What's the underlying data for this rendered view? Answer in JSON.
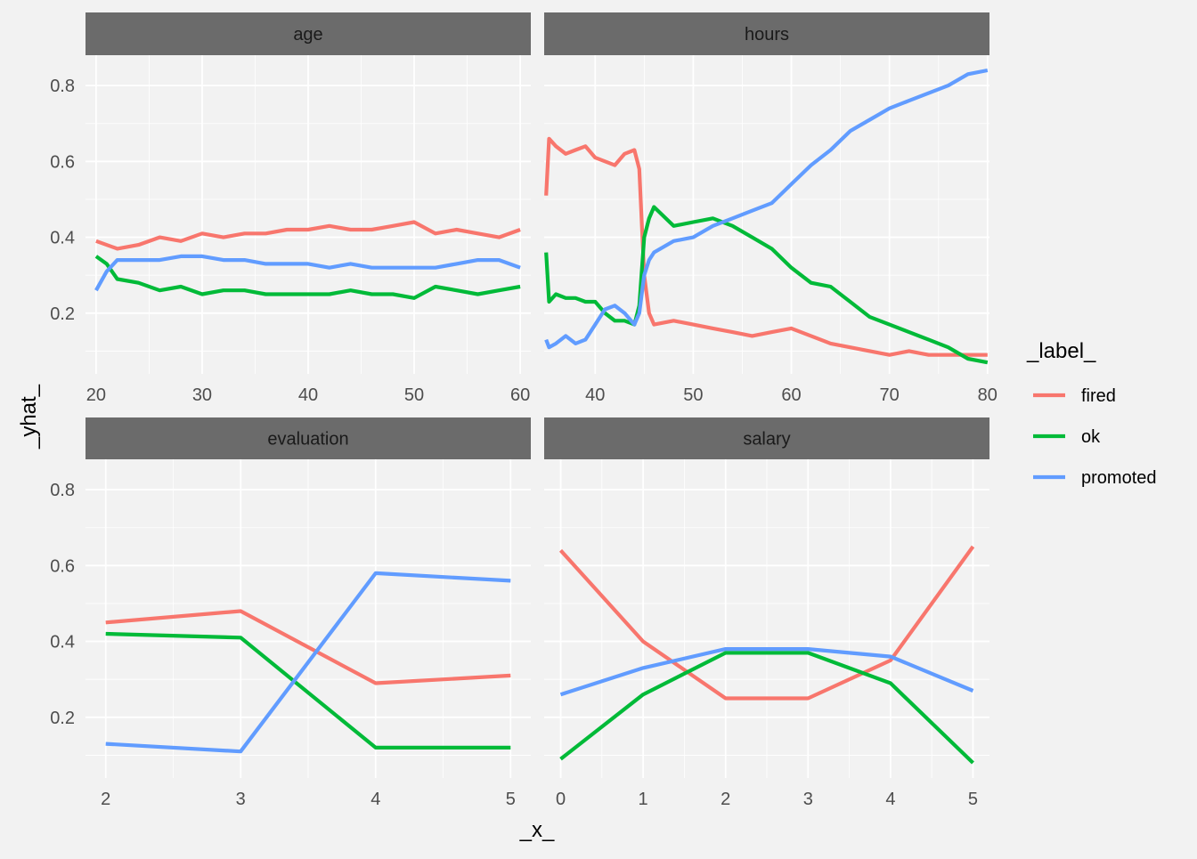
{
  "chart_data": {
    "type": "line",
    "xlabel": "_x_",
    "ylabel": "_yhat_",
    "legend": {
      "title": "_label_",
      "placement": "right",
      "entries": [
        {
          "name": "fired",
          "color": "#F8766D"
        },
        {
          "name": "ok",
          "color": "#00BA38"
        },
        {
          "name": "promoted",
          "color": "#619CFF"
        }
      ]
    },
    "shared_y": {
      "ylim": [
        0.04,
        0.88
      ],
      "ticks": [
        0.2,
        0.4,
        0.6,
        0.8
      ],
      "tick_labels": [
        "0.2",
        "0.4",
        "0.6",
        "0.8"
      ]
    },
    "panels": [
      {
        "title": "age",
        "xlim": [
          19,
          61
        ],
        "xticks": [
          20,
          30,
          40,
          50,
          60
        ],
        "xtick_labels": [
          "20",
          "30",
          "40",
          "50",
          "60"
        ],
        "series": [
          {
            "name": "fired",
            "x": [
              20,
              22,
              24,
              26,
              28,
              30,
              32,
              34,
              36,
              38,
              40,
              42,
              44,
              46,
              48,
              50,
              52,
              54,
              56,
              58,
              60
            ],
            "y": [
              0.39,
              0.37,
              0.38,
              0.4,
              0.39,
              0.41,
              0.4,
              0.41,
              0.41,
              0.42,
              0.42,
              0.43,
              0.42,
              0.42,
              0.43,
              0.44,
              0.41,
              0.42,
              0.41,
              0.4,
              0.42
            ]
          },
          {
            "name": "ok",
            "x": [
              20,
              21,
              22,
              24,
              26,
              28,
              30,
              32,
              34,
              36,
              38,
              40,
              42,
              44,
              46,
              48,
              50,
              52,
              54,
              56,
              58,
              60
            ],
            "y": [
              0.35,
              0.33,
              0.29,
              0.28,
              0.26,
              0.27,
              0.25,
              0.26,
              0.26,
              0.25,
              0.25,
              0.25,
              0.25,
              0.26,
              0.25,
              0.25,
              0.24,
              0.27,
              0.26,
              0.25,
              0.26,
              0.27
            ]
          },
          {
            "name": "promoted",
            "x": [
              20,
              21,
              22,
              24,
              26,
              28,
              30,
              32,
              34,
              36,
              38,
              40,
              42,
              44,
              46,
              48,
              50,
              52,
              54,
              56,
              58,
              60
            ],
            "y": [
              0.26,
              0.31,
              0.34,
              0.34,
              0.34,
              0.35,
              0.35,
              0.34,
              0.34,
              0.33,
              0.33,
              0.33,
              0.32,
              0.33,
              0.32,
              0.32,
              0.32,
              0.32,
              0.33,
              0.34,
              0.34,
              0.32
            ]
          }
        ]
      },
      {
        "title": "hours",
        "xlim": [
          34.8,
          80.2
        ],
        "xticks": [
          40,
          50,
          60,
          70,
          80
        ],
        "xtick_labels": [
          "40",
          "50",
          "60",
          "70",
          "80"
        ],
        "series": [
          {
            "name": "fired",
            "x": [
              35,
              35.3,
              36,
              37,
              38,
              39,
              40,
              41,
              42,
              43,
              44,
              44.5,
              45,
              45.5,
              46,
              48,
              50,
              52,
              54,
              56,
              58,
              60,
              62,
              64,
              66,
              68,
              70,
              72,
              74,
              76,
              78,
              80
            ],
            "y": [
              0.51,
              0.66,
              0.64,
              0.62,
              0.63,
              0.64,
              0.61,
              0.6,
              0.59,
              0.62,
              0.63,
              0.58,
              0.3,
              0.2,
              0.17,
              0.18,
              0.17,
              0.16,
              0.15,
              0.14,
              0.15,
              0.16,
              0.14,
              0.12,
              0.11,
              0.1,
              0.09,
              0.1,
              0.09,
              0.09,
              0.09,
              0.09
            ]
          },
          {
            "name": "ok",
            "x": [
              35,
              35.3,
              36,
              37,
              38,
              39,
              40,
              41,
              42,
              43,
              44,
              44.5,
              45,
              45.5,
              46,
              48,
              50,
              52,
              54,
              56,
              58,
              60,
              62,
              64,
              66,
              68,
              70,
              72,
              74,
              76,
              78,
              80
            ],
            "y": [
              0.36,
              0.23,
              0.25,
              0.24,
              0.24,
              0.23,
              0.23,
              0.2,
              0.18,
              0.18,
              0.17,
              0.22,
              0.4,
              0.45,
              0.48,
              0.43,
              0.44,
              0.45,
              0.43,
              0.4,
              0.37,
              0.32,
              0.28,
              0.27,
              0.23,
              0.19,
              0.17,
              0.15,
              0.13,
              0.11,
              0.08,
              0.07
            ]
          },
          {
            "name": "promoted",
            "x": [
              35,
              35.3,
              36,
              37,
              38,
              39,
              40,
              41,
              42,
              43,
              44,
              44.5,
              45,
              45.5,
              46,
              48,
              50,
              52,
              54,
              56,
              58,
              60,
              62,
              64,
              66,
              68,
              70,
              72,
              74,
              76,
              78,
              80
            ],
            "y": [
              0.13,
              0.11,
              0.12,
              0.14,
              0.12,
              0.13,
              0.17,
              0.21,
              0.22,
              0.2,
              0.17,
              0.2,
              0.3,
              0.34,
              0.36,
              0.39,
              0.4,
              0.43,
              0.45,
              0.47,
              0.49,
              0.54,
              0.59,
              0.63,
              0.68,
              0.71,
              0.74,
              0.76,
              0.78,
              0.8,
              0.83,
              0.84
            ]
          }
        ]
      },
      {
        "title": "evaluation",
        "xlim": [
          1.85,
          5.15
        ],
        "xticks": [
          2,
          3,
          4,
          5
        ],
        "xtick_labels": [
          "2",
          "3",
          "4",
          "5"
        ],
        "series": [
          {
            "name": "fired",
            "x": [
              2,
              3,
              4,
              5
            ],
            "y": [
              0.45,
              0.48,
              0.29,
              0.31
            ]
          },
          {
            "name": "ok",
            "x": [
              2,
              3,
              4,
              5
            ],
            "y": [
              0.42,
              0.41,
              0.12,
              0.12
            ]
          },
          {
            "name": "promoted",
            "x": [
              2,
              3,
              4,
              5
            ],
            "y": [
              0.13,
              0.11,
              0.58,
              0.56
            ]
          }
        ]
      },
      {
        "title": "salary",
        "xlim": [
          -0.2,
          5.2
        ],
        "xticks": [
          0,
          1,
          2,
          3,
          4,
          5
        ],
        "xtick_labels": [
          "0",
          "1",
          "2",
          "3",
          "4",
          "5"
        ],
        "series": [
          {
            "name": "fired",
            "x": [
              0,
              1,
              2,
              3,
              4,
              5
            ],
            "y": [
              0.64,
              0.4,
              0.25,
              0.25,
              0.35,
              0.65
            ]
          },
          {
            "name": "ok",
            "x": [
              0,
              1,
              2,
              3,
              4,
              5
            ],
            "y": [
              0.09,
              0.26,
              0.37,
              0.37,
              0.29,
              0.08
            ]
          },
          {
            "name": "promoted",
            "x": [
              0,
              1,
              2,
              3,
              4,
              5
            ],
            "y": [
              0.26,
              0.33,
              0.38,
              0.38,
              0.36,
              0.27
            ]
          }
        ]
      }
    ]
  }
}
